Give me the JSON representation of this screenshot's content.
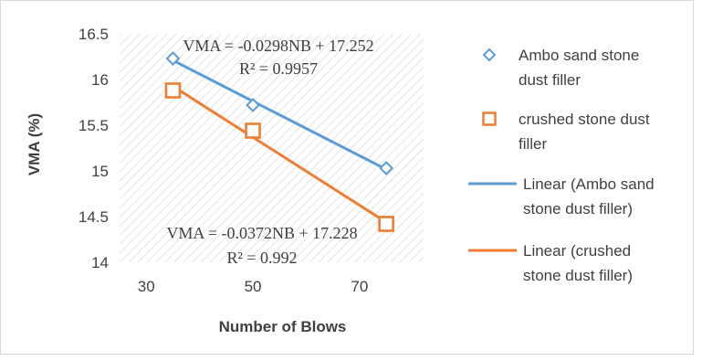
{
  "chart_data": {
    "type": "scatter",
    "xlabel": "Number of Blows",
    "ylabel": "VMA (%)",
    "xlim": [
      25,
      82
    ],
    "ylim": [
      14,
      16.5
    ],
    "x_ticks": [
      "30",
      "50",
      "70"
    ],
    "y_ticks": [
      "14",
      "14.5",
      "15",
      "15.5",
      "16",
      "16.5"
    ],
    "grid": false,
    "plot_background": "diagonal hatch",
    "legend_position": "right",
    "series": [
      {
        "name": "Ambo sand stone dust filler",
        "marker": "diamond",
        "color": "#5b9bd5",
        "x": [
          35,
          50,
          75
        ],
        "y": [
          16.23,
          15.72,
          15.03
        ]
      },
      {
        "name": "crushed stone dust filler",
        "marker": "square",
        "color": "#ed7d31",
        "x": [
          35,
          50,
          75
        ],
        "y": [
          15.88,
          15.44,
          14.42
        ]
      }
    ],
    "trendlines": [
      {
        "name": "Linear (Ambo sand stone dust filler)",
        "color": "#5b9bd5",
        "slope": -0.0298,
        "intercept": 17.252,
        "x_range": [
          35,
          75
        ],
        "equation": "VMA = -0.0298NB + 17.252",
        "r2": "R² = 0.9957"
      },
      {
        "name": "Linear (crushed stone dust filler)",
        "color": "#ed7d31",
        "slope": -0.0372,
        "intercept": 17.228,
        "x_range": [
          35,
          75
        ],
        "equation": "VMA = -0.0372NB + 17.228",
        "r2": "R² = 0.992"
      }
    ],
    "legend": [
      {
        "kind": "diamond",
        "color": "#5b9bd5",
        "lines": [
          "Ambo sand stone",
          "dust filler"
        ]
      },
      {
        "kind": "square",
        "color": "#ed7d31",
        "lines": [
          "crushed stone dust",
          "filler"
        ]
      },
      {
        "kind": "line",
        "color": "#5b9bd5",
        "lines": [
          "Linear (Ambo sand",
          "stone dust filler)"
        ]
      },
      {
        "kind": "line",
        "color": "#ed7d31",
        "lines": [
          "Linear (crushed",
          "stone dust filler)"
        ]
      }
    ]
  }
}
